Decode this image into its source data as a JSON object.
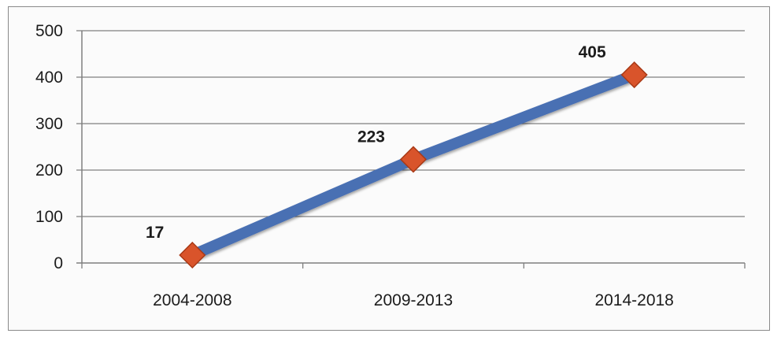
{
  "chart_data": {
    "type": "line",
    "title": "",
    "xlabel": "",
    "ylabel": "",
    "categories": [
      "2004-2008",
      "2009-2013",
      "2014-2018"
    ],
    "series": [
      {
        "values": [
          17,
          223,
          405
        ]
      }
    ],
    "data_labels": [
      "17",
      "223",
      "405"
    ],
    "ylim": [
      0,
      500
    ],
    "yticks": [
      0,
      100,
      200,
      300,
      400,
      500
    ],
    "grid": true,
    "legend": "none",
    "colors": {
      "line": "#4a6fb3",
      "marker": "#d9542b",
      "marker_edge": "#a93a17",
      "grid": "#7f7f7f"
    }
  }
}
